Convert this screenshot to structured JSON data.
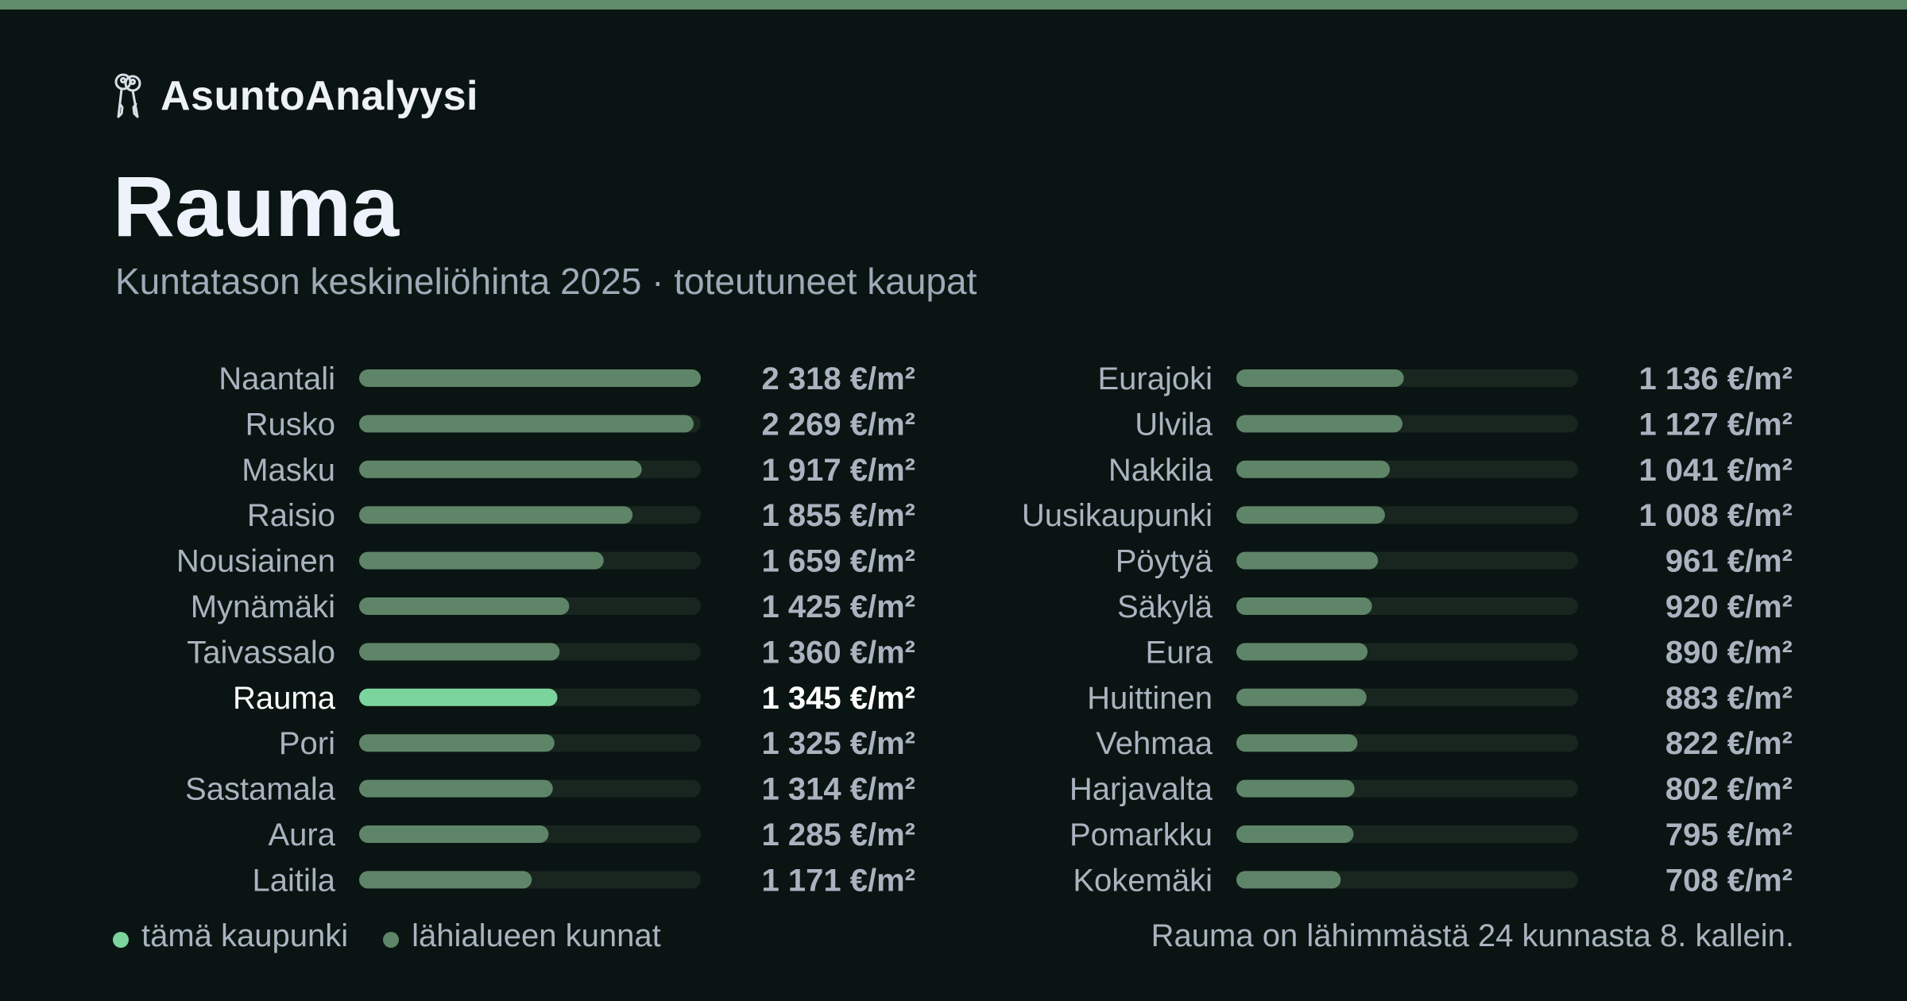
{
  "brand": {
    "name": "AsuntoAnalyysi",
    "icon": "keys-icon"
  },
  "title": "Rauma",
  "subtitle": "Kuntatason keskineliöhinta 2025 · toteutuneet kaupat",
  "legend": {
    "highlight_label": "tämä kaupunki",
    "others_label": "lähialueen kunnat"
  },
  "footnote": "Rauma on lähimmästä 24 kunnasta 8. kallein.",
  "colors": {
    "background": "#0a1513",
    "top_bar": "#5f8c6a",
    "bar_other": "#5f8568",
    "bar_highlight": "#7bd49d",
    "track": "#18261f",
    "label_other": "#aab3bf",
    "label_highlight": "#ffffff"
  },
  "chart_data": {
    "type": "bar",
    "orientation": "horizontal",
    "unit": "€/m²",
    "highlight": "Rauma",
    "xlim": [
      0,
      2318
    ],
    "categories": [
      "Naantali",
      "Rusko",
      "Masku",
      "Raisio",
      "Nousiainen",
      "Mynämäki",
      "Taivassalo",
      "Rauma",
      "Pori",
      "Sastamala",
      "Aura",
      "Laitila",
      "Eurajoki",
      "Ulvila",
      "Nakkila",
      "Uusikaupunki",
      "Pöytyä",
      "Säkylä",
      "Eura",
      "Huittinen",
      "Vehmaa",
      "Harjavalta",
      "Pomarkku",
      "Kokemäki"
    ],
    "values": [
      2318,
      2269,
      1917,
      1855,
      1659,
      1425,
      1360,
      1345,
      1325,
      1314,
      1285,
      1171,
      1136,
      1127,
      1041,
      1008,
      961,
      920,
      890,
      883,
      822,
      802,
      795,
      708
    ],
    "value_labels": [
      "2 318 €/m²",
      "2 269 €/m²",
      "1 917 €/m²",
      "1 855 €/m²",
      "1 659 €/m²",
      "1 425 €/m²",
      "1 360 €/m²",
      "1 345 €/m²",
      "1 325 €/m²",
      "1 314 €/m²",
      "1 285 €/m²",
      "1 171 €/m²",
      "1 136 €/m²",
      "1 127 €/m²",
      "1 041 €/m²",
      "1 008 €/m²",
      "961 €/m²",
      "920 €/m²",
      "890 €/m²",
      "883 €/m²",
      "822 €/m²",
      "802 €/m²",
      "795 €/m²",
      "708 €/m²"
    ]
  }
}
